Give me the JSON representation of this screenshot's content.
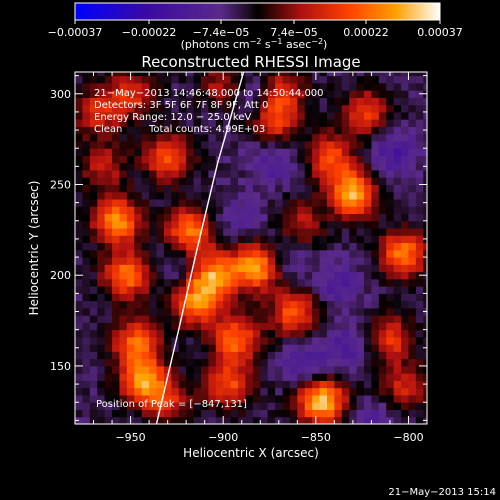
{
  "chart_data": {
    "type": "heatmap",
    "title": "Reconstructed RHESSI Image",
    "xlabel": "Heliocentric X (arcsec)",
    "ylabel": "Heliocentric Y (arcsec)",
    "xlim": [
      -980,
      -790
    ],
    "ylim": [
      118,
      312
    ],
    "xticks": [
      -950,
      -900,
      -850,
      -800
    ],
    "xtick_labels": [
      "−950",
      "−900",
      "−850",
      "−800"
    ],
    "yticks": [
      150,
      200,
      250,
      300
    ],
    "ytick_labels": [
      "150",
      "200",
      "250",
      "300"
    ],
    "colorbar": {
      "ticks": [
        -0.00037,
        -0.00022,
        -7.4e-05,
        7.4e-05,
        0.00022,
        0.00037
      ],
      "tick_labels": [
        "−0.00037",
        "−0.00022",
        "−7.4e−05",
        "7.4e−05",
        "0.00022",
        "0.00037"
      ],
      "units_main": "(photons cm",
      "units_sup1": "−2",
      "units_mid1": " s",
      "units_sup2": "−1",
      "units_mid2": " asec",
      "units_sup3": "−2",
      "units_end": ")",
      "colormap": [
        "#0000ff",
        "#3a0aa0",
        "#5a2a8a",
        "#000000",
        "#b01010",
        "#ff4000",
        "#ffa000",
        "#ffffff"
      ]
    },
    "annotations": {
      "time_range": "21−May−2013 14:46:48.000 to 14:50:44.000",
      "detectors": "Detectors: 3F 5F 6F 7F 8F 9F, Att 0",
      "energy_range": "Energy Range: 12.0 − 25.0 keV",
      "method": "Clean",
      "total_counts": "Total counts: 4.99E+03",
      "peak": "Position of Peak = [−847,131]"
    },
    "peak": [
      -847,
      131
    ],
    "limb_points": [
      [
        -936,
        118
      ],
      [
        -924,
        170
      ],
      [
        -914,
        215
      ],
      [
        -903,
        262
      ],
      [
        -889,
        312
      ]
    ],
    "sources": [
      {
        "x": -957,
        "y": 230,
        "intensity": 0.0003
      },
      {
        "x": -952,
        "y": 200,
        "intensity": 0.00027
      },
      {
        "x": -947,
        "y": 163,
        "intensity": 0.00025
      },
      {
        "x": -943,
        "y": 142,
        "intensity": 0.0003
      },
      {
        "x": -930,
        "y": 265,
        "intensity": 0.00024
      },
      {
        "x": -918,
        "y": 225,
        "intensity": 0.00028
      },
      {
        "x": -905,
        "y": 200,
        "intensity": 0.0003
      },
      {
        "x": -915,
        "y": 185,
        "intensity": 0.00028
      },
      {
        "x": -882,
        "y": 205,
        "intensity": 0.00033
      },
      {
        "x": -893,
        "y": 165,
        "intensity": 0.00026
      },
      {
        "x": -897,
        "y": 140,
        "intensity": 0.00022
      },
      {
        "x": -862,
        "y": 180,
        "intensity": 0.00024
      },
      {
        "x": -847,
        "y": 131,
        "intensity": 0.00037
      },
      {
        "x": -872,
        "y": 285,
        "intensity": 0.0002
      },
      {
        "x": -868,
        "y": 302,
        "intensity": 0.00018
      },
      {
        "x": -830,
        "y": 245,
        "intensity": 0.00033
      },
      {
        "x": -842,
        "y": 265,
        "intensity": 0.00022
      },
      {
        "x": -803,
        "y": 212,
        "intensity": 0.00028
      },
      {
        "x": -810,
        "y": 165,
        "intensity": 0.0002
      },
      {
        "x": -802,
        "y": 138,
        "intensity": 0.00016
      },
      {
        "x": -968,
        "y": 290,
        "intensity": 0.00018
      },
      {
        "x": -950,
        "y": 300,
        "intensity": 0.00018
      },
      {
        "x": -900,
        "y": 305,
        "intensity": 0.00015
      },
      {
        "x": -823,
        "y": 290,
        "intensity": 0.0002
      },
      {
        "x": -965,
        "y": 260,
        "intensity": 0.00015
      },
      {
        "x": -930,
        "y": 130,
        "intensity": 0.00016
      },
      {
        "x": -858,
        "y": 228,
        "intensity": 0.00014
      }
    ],
    "negative_regions": [
      {
        "x": -873,
        "y": 263,
        "intensity": -0.0001
      },
      {
        "x": -890,
        "y": 232,
        "intensity": -8e-05
      },
      {
        "x": -855,
        "y": 150,
        "intensity": -0.00012
      },
      {
        "x": -838,
        "y": 195,
        "intensity": -0.0001
      },
      {
        "x": -818,
        "y": 118,
        "intensity": -9e-05
      },
      {
        "x": -925,
        "y": 205,
        "intensity": -7e-05
      },
      {
        "x": -808,
        "y": 268,
        "intensity": -0.00012
      },
      {
        "x": -866,
        "y": 210,
        "intensity": -9e-05
      },
      {
        "x": -832,
        "y": 160,
        "intensity": -0.00011
      },
      {
        "x": -885,
        "y": 300,
        "intensity": -0.0001
      }
    ]
  },
  "timestamp": "21−May−2013 15:14"
}
